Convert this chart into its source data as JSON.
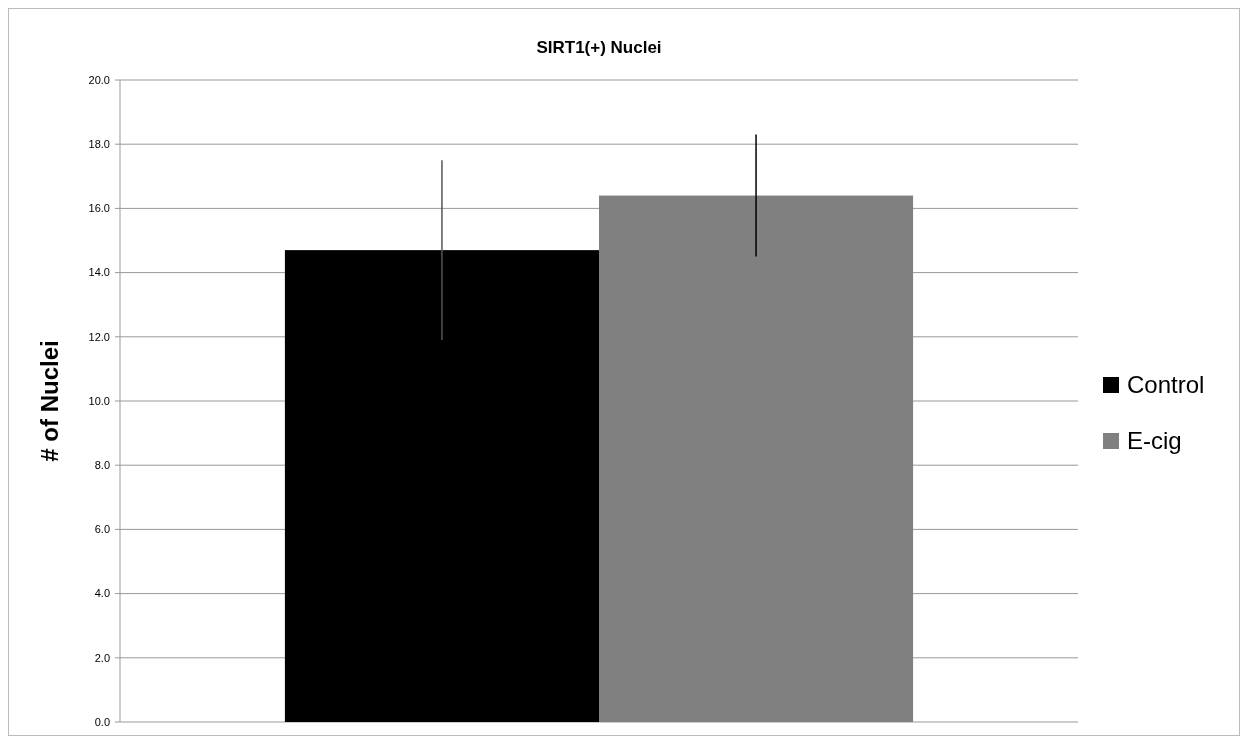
{
  "chart_data": {
    "type": "bar",
    "title": "SIRT1(+) Nuclei",
    "ylabel": "# of Nuclei",
    "categories": [
      null
    ],
    "series": [
      {
        "name": "Control",
        "color": "#000000",
        "values": [
          14.7
        ],
        "errors": [
          2.8
        ]
      },
      {
        "name": "E-cig",
        "color": "#808080",
        "values": [
          16.4
        ],
        "errors": [
          1.9
        ]
      }
    ],
    "ylim": [
      0,
      20
    ],
    "yticks": [
      {
        "value": 0,
        "label": "0.0"
      },
      {
        "value": 2,
        "label": "2.0"
      },
      {
        "value": 4,
        "label": "4.0"
      },
      {
        "value": 6,
        "label": "6.0"
      },
      {
        "value": 8,
        "label": "8.0"
      },
      {
        "value": 10,
        "label": "10.0"
      },
      {
        "value": 12,
        "label": "12.0"
      },
      {
        "value": 14,
        "label": "14.0"
      },
      {
        "value": 16,
        "label": "16.0"
      },
      {
        "value": 18,
        "label": "18.0"
      },
      {
        "value": 20,
        "label": "20.0"
      }
    ],
    "grid": "y",
    "legend": "right"
  }
}
